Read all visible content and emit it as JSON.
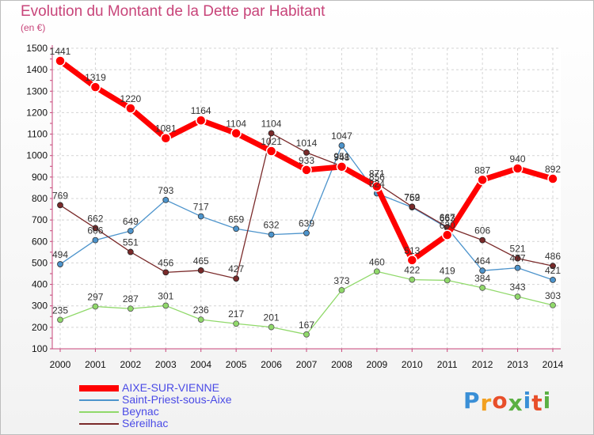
{
  "title": "Evolution du Montant de la Dette par Habitant",
  "unit": "(en €)",
  "chart_data": {
    "type": "line",
    "x": [
      "2000",
      "2001",
      "2002",
      "2003",
      "2004",
      "2005",
      "2006",
      "2007",
      "2008",
      "2009",
      "2010",
      "2011",
      "2012",
      "2013",
      "2014"
    ],
    "yticks": [
      100,
      200,
      300,
      400,
      500,
      600,
      700,
      800,
      900,
      1000,
      1100,
      1200,
      1300,
      1400,
      1500
    ],
    "ylim": [
      100,
      1500
    ],
    "grid": true,
    "legend_position": "bottom-left",
    "series": [
      {
        "name": "AIXE-SUR-VIENNE",
        "color": "#ff0000",
        "values": [
          1441,
          1319,
          1220,
          1081,
          1164,
          1104,
          1021,
          933,
          948,
          856,
          513,
          630,
          887,
          940,
          892
        ]
      },
      {
        "name": "Saint-Priest-sous-Aixe",
        "color": "#4d94cc",
        "values": [
          494,
          606,
          649,
          793,
          717,
          659,
          632,
          639,
          1047,
          824,
          759,
          663,
          464,
          477,
          421
        ]
      },
      {
        "name": "Beynac",
        "color": "#90d96a",
        "values": [
          235,
          297,
          287,
          301,
          236,
          217,
          201,
          167,
          373,
          460,
          422,
          419,
          384,
          343,
          303
        ]
      },
      {
        "name": "Séreilhac",
        "color": "#7a2a2a",
        "values": [
          769,
          662,
          551,
          456,
          465,
          427,
          1104,
          1014,
          951,
          871,
          762,
          667,
          606,
          521,
          486
        ]
      }
    ]
  },
  "logo_text": "Proxiti"
}
